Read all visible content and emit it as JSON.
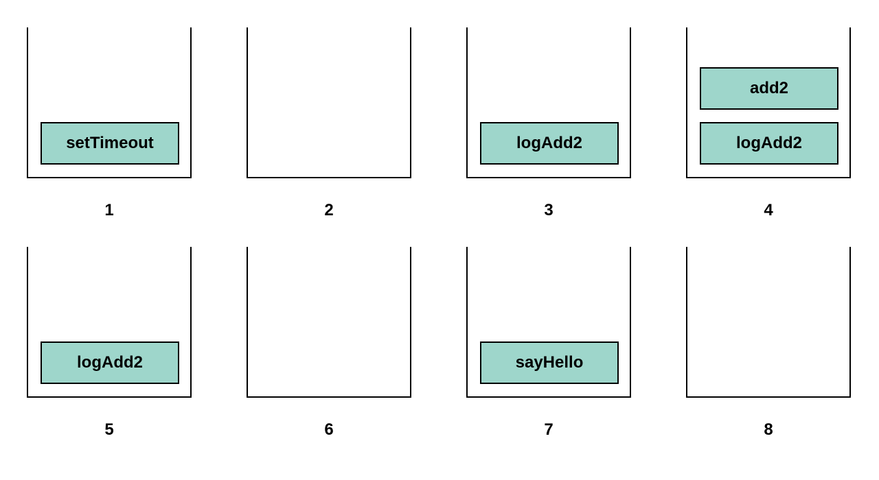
{
  "steps": [
    {
      "label": "1",
      "frames": [
        "setTimeout"
      ]
    },
    {
      "label": "2",
      "frames": []
    },
    {
      "label": "3",
      "frames": [
        "logAdd2"
      ]
    },
    {
      "label": "4",
      "frames": [
        "logAdd2",
        "add2"
      ]
    },
    {
      "label": "5",
      "frames": [
        "logAdd2"
      ]
    },
    {
      "label": "6",
      "frames": []
    },
    {
      "label": "7",
      "frames": [
        "sayHello"
      ]
    },
    {
      "label": "8",
      "frames": []
    }
  ],
  "colors": {
    "frame_fill": "#9ed6cb",
    "outline": "#000000"
  }
}
